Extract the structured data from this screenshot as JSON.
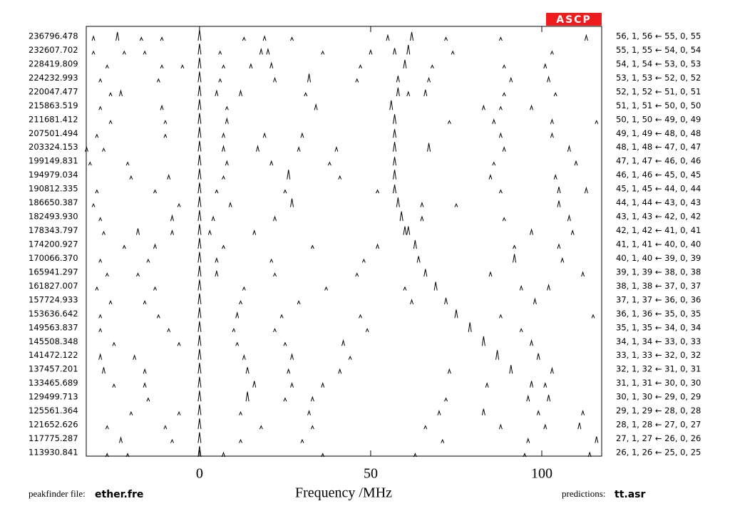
{
  "chart_data": {
    "type": "loomis-wood",
    "badge": "ASCP",
    "xlabel": "Frequency /MHz",
    "xlim": [
      -33.1,
      117.5
    ],
    "xticks": [
      0,
      50,
      100
    ],
    "peakfinder_label": "peakfinder file:",
    "peakfinder_file": "ether.fre",
    "predictions_label": "predictions:",
    "predictions_file": "tt.asr",
    "color": "#000000",
    "rows": [
      {
        "frequency": "236796.478",
        "assignment": "56, 1, 56 ← 55, 0, 55",
        "peaks_x": [
          -31,
          -24,
          -17,
          -11,
          0,
          13,
          19,
          27,
          55,
          62,
          72,
          88,
          113
        ],
        "peaks_h": [
          0.4,
          0.8,
          0.3,
          0.3,
          1,
          0.3,
          0.4,
          0.3,
          0.5,
          0.8,
          0.3,
          0.3,
          0.5
        ]
      },
      {
        "frequency": "232607.702",
        "assignment": "55, 1, 55 ← 54, 0, 54",
        "peaks_x": [
          -31,
          -22,
          -16,
          0,
          6,
          18,
          20,
          36,
          50,
          57,
          61,
          74,
          103
        ],
        "peaks_h": [
          0.3,
          0.3,
          0.3,
          1,
          0.3,
          0.5,
          0.5,
          0.3,
          0.4,
          0.6,
          0.9,
          0.3,
          0.3
        ]
      },
      {
        "frequency": "228419.809",
        "assignment": "54, 1, 54 ← 53, 0, 53",
        "peaks_x": [
          -27,
          -11,
          -5,
          0,
          7,
          15,
          21,
          47,
          60,
          68,
          89,
          101
        ],
        "peaks_h": [
          0.3,
          0.3,
          0.3,
          1,
          0.3,
          0.4,
          0.5,
          0.3,
          0.8,
          0.3,
          0.3,
          0.4
        ]
      },
      {
        "frequency": "224232.993",
        "assignment": "53, 1, 53 ← 52, 0, 52",
        "peaks_x": [
          -29,
          -12,
          0,
          6,
          22,
          32,
          46,
          58,
          67,
          91,
          102
        ],
        "peaks_h": [
          0.3,
          0.3,
          1,
          0.3,
          0.4,
          0.8,
          0.3,
          0.6,
          0.4,
          0.4,
          0.5
        ]
      },
      {
        "frequency": "220047.477",
        "assignment": "52, 1, 52 ← 51, 0, 51",
        "peaks_x": [
          -26,
          -23,
          0,
          5,
          12,
          31,
          58,
          61,
          66,
          89,
          104
        ],
        "peaks_h": [
          0.3,
          0.5,
          1,
          0.5,
          0.5,
          0.3,
          0.8,
          0.4,
          0.6,
          0.3,
          0.3
        ]
      },
      {
        "frequency": "215863.519",
        "assignment": "51, 1, 51 ← 50, 0, 50",
        "peaks_x": [
          -29,
          -11,
          0,
          8,
          34,
          56,
          83,
          88,
          97
        ],
        "peaks_h": [
          0.3,
          0.4,
          1,
          0.3,
          0.5,
          0.9,
          0.4,
          0.3,
          0.4
        ]
      },
      {
        "frequency": "211681.412",
        "assignment": "50, 1, 50 ← 49, 0, 49",
        "peaks_x": [
          -26,
          -10,
          0,
          8,
          57,
          73,
          86,
          103,
          116
        ],
        "peaks_h": [
          0.3,
          0.3,
          1,
          0.5,
          0.9,
          0.3,
          0.4,
          0.4,
          0.3
        ]
      },
      {
        "frequency": "207501.494",
        "assignment": "49, 1, 49 ← 48, 0, 48",
        "peaks_x": [
          -30,
          -10,
          0,
          7,
          19,
          30,
          57,
          88,
          103
        ],
        "peaks_h": [
          0.3,
          0.3,
          1,
          0.4,
          0.4,
          0.4,
          0.8,
          0.4,
          0.4
        ]
      },
      {
        "frequency": "203324.153",
        "assignment": "48, 1, 48 ← 47, 0, 47",
        "peaks_x": [
          -33,
          -28,
          0,
          7,
          17,
          29,
          40,
          57,
          67,
          89,
          108
        ],
        "peaks_h": [
          0.4,
          0.3,
          1,
          0.5,
          0.5,
          0.4,
          0.4,
          0.9,
          0.8,
          0.4,
          0.5
        ]
      },
      {
        "frequency": "199149.831",
        "assignment": "47, 1, 47 ← 46, 0, 46",
        "peaks_x": [
          -32,
          -21,
          0,
          8,
          21,
          38,
          57,
          86,
          110
        ],
        "peaks_h": [
          0.3,
          0.3,
          1,
          0.4,
          0.4,
          0.3,
          0.8,
          0.3,
          0.4
        ]
      },
      {
        "frequency": "194979.034",
        "assignment": "46, 1, 46 ← 45, 0, 45",
        "peaks_x": [
          -20,
          -9,
          0,
          7,
          26,
          41,
          57,
          85,
          104
        ],
        "peaks_h": [
          0.3,
          0.4,
          1,
          0.3,
          0.9,
          0.3,
          0.9,
          0.4,
          0.4
        ]
      },
      {
        "frequency": "190812.335",
        "assignment": "45, 1, 45 ← 44, 0, 44",
        "peaks_x": [
          -30,
          -13,
          0,
          5,
          25,
          52,
          57,
          88,
          105,
          113
        ],
        "peaks_h": [
          0.3,
          0.3,
          1,
          0.3,
          0.3,
          0.3,
          0.8,
          0.3,
          0.6,
          0.5
        ]
      },
      {
        "frequency": "186650.387",
        "assignment": "44, 1, 44 ← 43, 0, 43",
        "peaks_x": [
          -31,
          -6,
          0,
          9,
          27,
          58,
          65,
          75,
          105
        ],
        "peaks_h": [
          0.3,
          0.3,
          1,
          0.4,
          0.8,
          0.9,
          0.4,
          0.3,
          0.6
        ]
      },
      {
        "frequency": "182493.930",
        "assignment": "43, 1, 43 ← 42, 0, 42",
        "peaks_x": [
          -29,
          -8,
          0,
          4,
          22,
          59,
          65,
          89,
          108
        ],
        "peaks_h": [
          0.3,
          0.5,
          1,
          0.4,
          0.4,
          0.9,
          0.4,
          0.3,
          0.5
        ]
      },
      {
        "frequency": "178343.797",
        "assignment": "42, 1, 42 ← 41, 0, 41",
        "peaks_x": [
          -28,
          -18,
          -8,
          0,
          3,
          16,
          60,
          61,
          97,
          109
        ],
        "peaks_h": [
          0.3,
          0.6,
          0.4,
          1,
          0.4,
          0.4,
          0.8,
          0.8,
          0.5,
          0.4
        ]
      },
      {
        "frequency": "174200.927",
        "assignment": "41, 1, 41 ← 40, 0, 40",
        "peaks_x": [
          -22,
          -13,
          0,
          7,
          33,
          52,
          63,
          92,
          105
        ],
        "peaks_h": [
          0.3,
          0.4,
          1,
          0.3,
          0.3,
          0.4,
          0.8,
          0.3,
          0.4
        ]
      },
      {
        "frequency": "170066.370",
        "assignment": "40, 1, 40 ← 39, 0, 39",
        "peaks_x": [
          -29,
          -15,
          0,
          5,
          21,
          48,
          64,
          92,
          106
        ],
        "peaks_h": [
          0.3,
          0.3,
          1,
          0.4,
          0.3,
          0.3,
          0.6,
          0.8,
          0.4
        ]
      },
      {
        "frequency": "165941.297",
        "assignment": "39, 1, 39 ← 38, 0, 38",
        "peaks_x": [
          -27,
          -18,
          0,
          5,
          22,
          46,
          66,
          85,
          112
        ],
        "peaks_h": [
          0.3,
          0.3,
          1,
          0.5,
          0.3,
          0.3,
          0.7,
          0.4,
          0.4
        ]
      },
      {
        "frequency": "161827.007",
        "assignment": "38, 1, 38 ← 37, 0, 37",
        "peaks_x": [
          -30,
          -13,
          0,
          13,
          37,
          60,
          69,
          94,
          102
        ],
        "peaks_h": [
          0.3,
          0.3,
          1,
          0.3,
          0.3,
          0.3,
          0.8,
          0.4,
          0.5
        ]
      },
      {
        "frequency": "157724.933",
        "assignment": "37, 1, 37 ← 36, 0, 36",
        "peaks_x": [
          -26,
          -16,
          0,
          12,
          29,
          62,
          72,
          98
        ],
        "peaks_h": [
          0.3,
          0.3,
          1,
          0.3,
          0.3,
          0.4,
          0.6,
          0.5
        ]
      },
      {
        "frequency": "153636.642",
        "assignment": "36, 1, 36 ← 35, 0, 35",
        "peaks_x": [
          -29,
          -12,
          0,
          11,
          24,
          47,
          75,
          88,
          115
        ],
        "peaks_h": [
          0.3,
          0.3,
          1,
          0.5,
          0.3,
          0.3,
          0.8,
          0.3,
          0.3
        ]
      },
      {
        "frequency": "149563.837",
        "assignment": "35, 1, 35 ← 34, 0, 34",
        "peaks_x": [
          -29,
          -9,
          0,
          10,
          22,
          49,
          79,
          94
        ],
        "peaks_h": [
          0.3,
          0.3,
          1,
          0.3,
          0.3,
          0.3,
          0.9,
          0.3
        ]
      },
      {
        "frequency": "145508.348",
        "assignment": "34, 1, 34 ← 33, 0, 33",
        "peaks_x": [
          -25,
          -6,
          0,
          11,
          25,
          42,
          83,
          97
        ],
        "peaks_h": [
          0.3,
          0.3,
          1,
          0.3,
          0.3,
          0.5,
          0.9,
          0.5
        ]
      },
      {
        "frequency": "141472.122",
        "assignment": "33, 1, 33 ← 32, 0, 32",
        "peaks_x": [
          -29,
          -19,
          0,
          13,
          27,
          44,
          87,
          99
        ],
        "peaks_h": [
          0.5,
          0.4,
          1,
          0.4,
          0.5,
          0.3,
          0.9,
          0.6
        ]
      },
      {
        "frequency": "137457.201",
        "assignment": "32, 1, 32 ← 31, 0, 31",
        "peaks_x": [
          -28,
          -16,
          0,
          14,
          26,
          41,
          73,
          91,
          103
        ],
        "peaks_h": [
          0.6,
          0.4,
          1,
          0.6,
          0.4,
          0.4,
          0.4,
          0.8,
          0.5
        ]
      },
      {
        "frequency": "133465.689",
        "assignment": "31, 1, 31 ← 30, 0, 30",
        "peaks_x": [
          -25,
          -16,
          0,
          16,
          27,
          36,
          84,
          97,
          101
        ],
        "peaks_h": [
          0.3,
          0.4,
          1,
          0.6,
          0.4,
          0.4,
          0.4,
          0.6,
          0.4
        ]
      },
      {
        "frequency": "129499.713",
        "assignment": "30, 1, 30 ← 29, 0, 29",
        "peaks_x": [
          -15,
          0,
          14,
          25,
          33,
          72,
          96,
          102
        ],
        "peaks_h": [
          0.3,
          1,
          0.9,
          0.3,
          0.4,
          0.3,
          0.5,
          0.6
        ]
      },
      {
        "frequency": "125561.364",
        "assignment": "29, 1, 29 ← 28, 0, 28",
        "peaks_x": [
          -20,
          -6,
          0,
          12,
          32,
          70,
          83,
          99,
          112
        ],
        "peaks_h": [
          0.3,
          0.3,
          1,
          0.3,
          0.4,
          0.4,
          0.6,
          0.4,
          0.4
        ]
      },
      {
        "frequency": "121652.626",
        "assignment": "28, 1, 28 ← 27, 0, 27",
        "peaks_x": [
          -27,
          -10,
          0,
          18,
          33,
          66,
          88,
          101,
          111
        ],
        "peaks_h": [
          0.3,
          0.3,
          1,
          0.3,
          0.3,
          0.3,
          0.4,
          0.4,
          0.6
        ]
      },
      {
        "frequency": "117775.287",
        "assignment": "27, 1, 27 ← 26, 0, 26",
        "peaks_x": [
          -23,
          -8,
          0,
          12,
          30,
          71,
          96,
          116
        ],
        "peaks_h": [
          0.5,
          0.3,
          1,
          0.3,
          0.3,
          0.3,
          0.4,
          0.6
        ]
      },
      {
        "frequency": "113930.841",
        "assignment": "26, 1, 26 ← 25, 0, 25",
        "peaks_x": [
          -27,
          -21,
          0,
          7,
          36,
          63,
          95,
          114
        ],
        "peaks_h": [
          0.3,
          0.3,
          1,
          0.4,
          0.3,
          0.3,
          0.3,
          0.4
        ]
      }
    ]
  }
}
